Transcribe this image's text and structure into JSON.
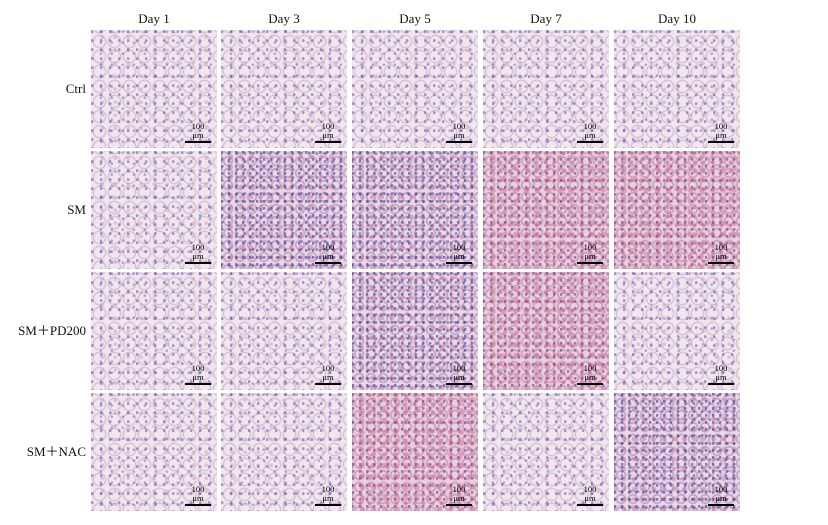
{
  "columns": [
    "Day 1",
    "Day 3",
    "Day 5",
    "Day 7",
    "Day 10"
  ],
  "rows": [
    {
      "label": "Ctrl",
      "severity": [
        1,
        1,
        1,
        1,
        1
      ]
    },
    {
      "label": "SM",
      "severity": [
        1,
        2,
        2,
        3,
        3
      ]
    },
    {
      "label": "SM＋PD200",
      "severity": [
        1,
        1,
        2,
        3,
        1
      ]
    },
    {
      "label": "SM＋NAC",
      "severity": [
        1,
        1,
        3,
        1,
        2
      ]
    }
  ],
  "scale_bar_label": "100 μm"
}
